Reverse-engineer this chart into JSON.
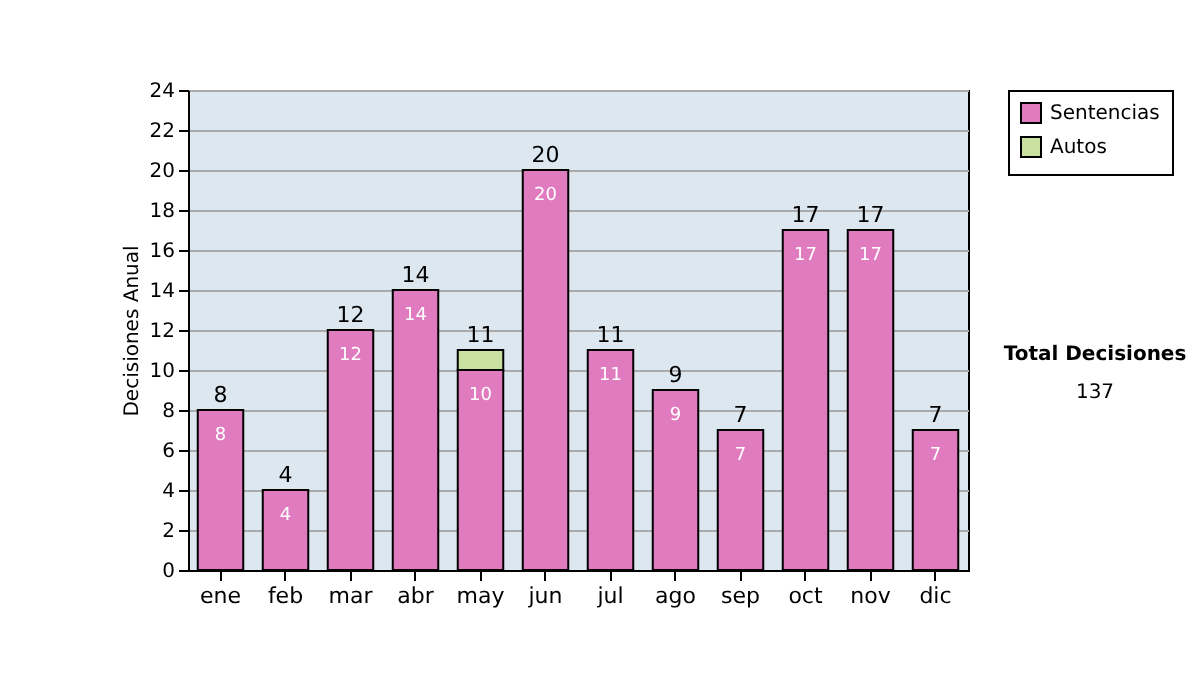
{
  "chart_data": {
    "type": "bar",
    "stacked": true,
    "ylabel": "Decisiones Anual",
    "categories": [
      "ene",
      "feb",
      "mar",
      "abr",
      "may",
      "jun",
      "jul",
      "ago",
      "sep",
      "oct",
      "nov",
      "dic"
    ],
    "series": [
      {
        "name": "Sentencias",
        "color": "#e07bbf",
        "values": [
          8,
          4,
          12,
          14,
          10,
          20,
          11,
          9,
          7,
          17,
          17,
          7
        ],
        "value_labels": [
          "8",
          "4",
          "12",
          "14",
          "10",
          "20",
          "11",
          "9",
          "7",
          "17",
          "17",
          "7"
        ]
      },
      {
        "name": "Autos",
        "color": "#c9e0a0",
        "values": [
          null,
          null,
          null,
          null,
          1,
          null,
          null,
          null,
          null,
          null,
          null,
          null
        ]
      }
    ],
    "totals": [
      "8",
      "4",
      "12",
      "14",
      "11",
      "20",
      "11",
      "9",
      "7",
      "17",
      "17",
      "7"
    ],
    "ylim": [
      0,
      24
    ],
    "yticks": [
      0,
      2,
      4,
      6,
      8,
      10,
      12,
      14,
      16,
      18,
      20,
      22,
      24
    ],
    "grid": "y",
    "legend": "right",
    "annotations": [
      "Total Decisiones",
      "137"
    ]
  }
}
